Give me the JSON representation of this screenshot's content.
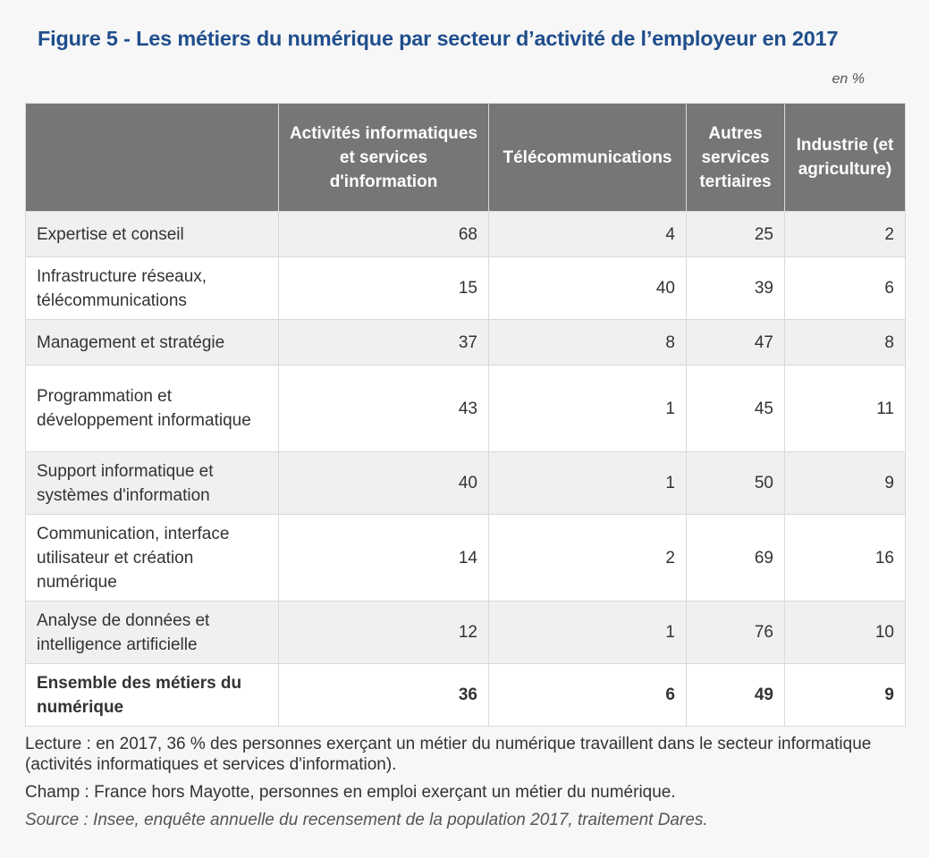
{
  "title": "Figure 5 - Les métiers du numérique par secteur d’activité de l’employeur en 2017",
  "unit": "en %",
  "chart_data": {
    "type": "table",
    "title": "Figure 5 - Les métiers du numérique par secteur d’activité de l’employeur en 2017",
    "unit": "en %",
    "columns": [
      "",
      "Activités informatiques et services d'information",
      "Télécommunications",
      "Autres services tertiaires",
      "Industrie (et agriculture)"
    ],
    "rows": [
      {
        "label": "Expertise et conseil",
        "values": [
          "68",
          "4",
          "25",
          "2"
        ]
      },
      {
        "label": "Infrastructure réseaux, télécommunications",
        "values": [
          "15",
          "40",
          "39",
          "6"
        ]
      },
      {
        "label": "Management et stratégie",
        "values": [
          "37",
          "8",
          "47",
          "8"
        ]
      },
      {
        "label": "Programmation et développement informatique",
        "values": [
          "43",
          "1",
          "45",
          "11"
        ]
      },
      {
        "label": "Support informatique et systèmes d'information",
        "values": [
          "40",
          "1",
          "50",
          "9"
        ]
      },
      {
        "label": "Communication, interface utilisateur et création numérique",
        "values": [
          "14",
          "2",
          "69",
          "16"
        ]
      },
      {
        "label": "Analyse de données et intelligence artificielle",
        "values": [
          "12",
          "1",
          "76",
          "10"
        ]
      }
    ],
    "total": {
      "label": "Ensemble des métiers du numérique",
      "values": [
        "36",
        "6",
        "49",
        "9"
      ]
    }
  },
  "notes": {
    "lecture": "Lecture : en 2017, 36 % des personnes exerçant un métier du numérique travaillent dans le secteur informatique (activités informatiques et services d'information).",
    "champ": "Champ : France hors Mayotte, personnes en emploi exerçant un métier du numérique.",
    "source": "Source : Insee, enquête annuelle du recensement de la population 2017, traitement Dares."
  }
}
